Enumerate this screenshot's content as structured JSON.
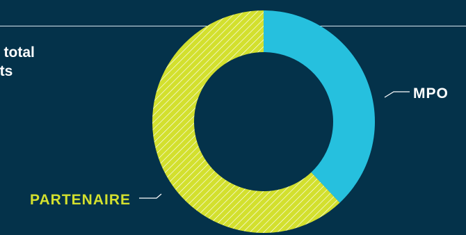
{
  "heading": {
    "line1": "e total",
    "line2": "ets"
  },
  "chart_data": {
    "type": "pie",
    "donut": true,
    "title": "",
    "slices": [
      {
        "label": "MPO",
        "value": 38,
        "color": "#26c0de",
        "pattern": "solid"
      },
      {
        "label": "PARTENAIRE",
        "value": 62,
        "color": "#d3e02e",
        "pattern": "diagonal-hatch"
      }
    ],
    "legend": "direct-labels"
  },
  "colors": {
    "background": "#04324a",
    "rule": "#d9e6ee",
    "heading_text": "#ffffff",
    "mpo": "#26c0de",
    "partenaire": "#d3e02e"
  }
}
